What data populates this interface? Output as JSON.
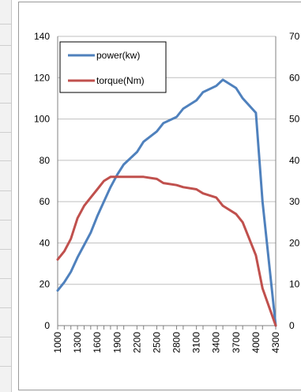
{
  "chart_data": {
    "type": "line",
    "x": [
      1000,
      1100,
      1200,
      1300,
      1400,
      1500,
      1600,
      1700,
      1800,
      1900,
      2000,
      2200,
      2300,
      2500,
      2600,
      2800,
      2900,
      3100,
      3200,
      3400,
      3500,
      3700,
      3800,
      4000,
      4100,
      4300
    ],
    "x_tick_labels": [
      "1000",
      "1300",
      "1600",
      "1900",
      "2200",
      "2500",
      "2800",
      "3100",
      "3400",
      "3700",
      "4000",
      "4300"
    ],
    "series": [
      {
        "name": "power(kw)",
        "color": "#4f81bd",
        "axis": "left",
        "values": [
          17,
          21,
          26,
          33,
          39,
          45,
          53,
          60,
          67,
          73,
          78,
          84,
          89,
          94,
          98,
          101,
          105,
          109,
          113,
          116,
          119,
          115,
          110,
          103,
          60,
          0
        ]
      },
      {
        "name": "torque(Nm)",
        "color": "#c0504d",
        "axis": "right",
        "values": [
          16,
          18,
          21,
          26,
          29,
          31,
          33,
          35,
          36,
          36,
          36,
          36,
          36,
          35.5,
          34.5,
          34,
          33.5,
          33,
          32,
          31,
          29,
          27,
          25,
          17,
          9,
          0
        ]
      }
    ],
    "y_left": {
      "ylim": [
        0,
        140
      ],
      "ticks": [
        "0",
        "20",
        "40",
        "60",
        "80",
        "100",
        "120",
        "140"
      ]
    },
    "y_right": {
      "ylim": [
        0,
        70
      ],
      "ticks": [
        "0",
        "10",
        "20",
        "30",
        "40",
        "50",
        "60",
        "70"
      ]
    },
    "grid": true,
    "legend_position": "top-left",
    "title": "",
    "xlabel": "",
    "ylabel": ""
  }
}
